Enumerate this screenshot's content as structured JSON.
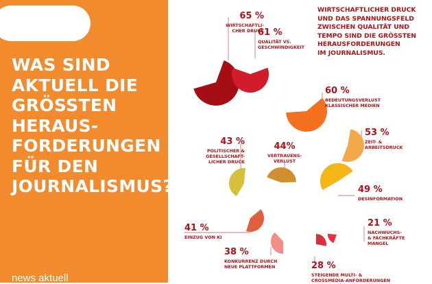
{
  "page": {
    "headline": "WAS SIND\nAKTUELL DIE\nGRÖSSTEN\nHERAUS-\nFORDERUNGEN\nFÜR DEN\nJOURNALISMUS?",
    "logo": "news aktuell",
    "note": "WIRTSCHAFTLICHER DRUCK\nUND DAS SPANNUNGSFELD\nZWISCHEN QUALITÄT UND\nTEMPO SIND DIE GRÖSSTEN\nHERAUSFORDERUNGEN\nIM JOURNALISMUS.",
    "colors": {
      "panel": "#f28a2e",
      "text": "#b01217"
    }
  },
  "chart_data": {
    "type": "pie",
    "unit": "%",
    "items": [
      {
        "label": "WIRTSCHAFTLI-\nCHER DRUCK",
        "value": 65,
        "value_label": "65 %",
        "color": "#a50e15"
      },
      {
        "label": "QUALITÄT VS.\nGESCHWINDIGKEIT",
        "value": 61,
        "value_label": "61 %",
        "color": "#d01c2b"
      },
      {
        "label": "BEDEUTUNGSVERLUST\nKLASSISCHER MEDIEN",
        "value": 60,
        "value_label": "60 %",
        "color": "#f4701f"
      },
      {
        "label": "ZEIT- &\nARBEITSDRUCK",
        "value": 53,
        "value_label": "53 %",
        "color": "#f4a84a"
      },
      {
        "label": "DESINFORMATION",
        "value": 49,
        "value_label": "49 %",
        "color": "#f5b517"
      },
      {
        "label": "VERTRAUENS-\nVERLUST",
        "value": 44,
        "value_label": "44%",
        "color": "#cf8f2a"
      },
      {
        "label": "POLITISCHER &\nGESELLSCHAFT-\nLICHER DRUCK",
        "value": 43,
        "value_label": "43 %",
        "color": "#d7bf3b"
      },
      {
        "label": "EINZUG VON KI",
        "value": 41,
        "value_label": "41 %",
        "color": "#e0603d"
      },
      {
        "label": "KONKURRENZ DURCH\nNEUE PLATTFORMEN",
        "value": 38,
        "value_label": "38 %",
        "color": "#f28c84"
      },
      {
        "label": "STEIGENDE MULTI- &\nCROSSMEDIA-ANFORDERUNGEN",
        "value": 28,
        "value_label": "28 %",
        "color": "#d9303d"
      },
      {
        "label": "NACHWUCHS-\n& FACHKRÄFTE\nMANGEL",
        "value": 21,
        "value_label": "21 %",
        "color": "#e8343f"
      }
    ]
  }
}
